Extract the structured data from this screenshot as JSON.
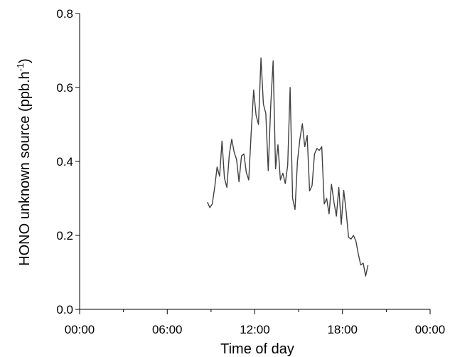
{
  "chart_data": {
    "type": "line",
    "xlabel": "Time of day",
    "ylabel_main": "HONO unknown source (ppb.h",
    "ylabel_sup": "-1",
    "ylabel_close": ")",
    "ylim": [
      0,
      0.8
    ],
    "yticks": [
      0.0,
      0.2,
      0.4,
      0.6,
      0.8
    ],
    "ytick_labels": [
      "0.0",
      "0.2",
      "0.4",
      "0.6",
      "0.8"
    ],
    "xlim_hours": [
      0,
      24
    ],
    "xticks_hours": [
      0,
      6,
      12,
      18,
      24
    ],
    "xtick_labels": [
      "00:00",
      "06:00",
      "12:00",
      "18:00",
      "00:00"
    ],
    "xminor_hours": [
      3,
      9,
      15,
      21
    ],
    "grid": false,
    "line_color": "#404040",
    "series": [
      {
        "x": [
          "08:45",
          "08:55",
          "09:05",
          "09:15",
          "09:25",
          "09:35",
          "09:45",
          "09:55",
          "10:05",
          "10:15",
          "10:25",
          "10:35",
          "10:45",
          "10:55",
          "11:05",
          "11:15",
          "11:25",
          "11:35",
          "11:45",
          "11:55",
          "12:05",
          "12:15",
          "12:25",
          "12:35",
          "12:45",
          "12:55",
          "13:05",
          "13:15",
          "13:25",
          "13:35",
          "13:45",
          "13:55",
          "14:05",
          "14:15",
          "14:25",
          "14:35",
          "14:45",
          "14:55",
          "15:05",
          "15:15",
          "15:25",
          "15:35",
          "15:45",
          "15:55",
          "16:05",
          "16:15",
          "16:25",
          "16:35",
          "16:45",
          "16:55",
          "17:05",
          "17:15",
          "17:25",
          "17:35",
          "17:45",
          "17:55",
          "18:05",
          "18:15",
          "18:25",
          "18:35",
          "18:45",
          "18:55",
          "19:05",
          "19:15",
          "19:25",
          "19:35",
          "19:45"
        ],
        "y": [
          0.29,
          0.275,
          0.285,
          0.33,
          0.385,
          0.36,
          0.455,
          0.355,
          0.33,
          0.42,
          0.46,
          0.425,
          0.405,
          0.345,
          0.415,
          0.42,
          0.37,
          0.35,
          0.48,
          0.593,
          0.525,
          0.5,
          0.68,
          0.555,
          0.53,
          0.375,
          0.55,
          0.672,
          0.38,
          0.445,
          0.35,
          0.368,
          0.34,
          0.39,
          0.6,
          0.3,
          0.27,
          0.4,
          0.46,
          0.502,
          0.44,
          0.47,
          0.32,
          0.335,
          0.42,
          0.435,
          0.43,
          0.44,
          0.285,
          0.3,
          0.258,
          0.338,
          0.29,
          0.252,
          0.33,
          0.23,
          0.322,
          0.265,
          0.195,
          0.19,
          0.2,
          0.185,
          0.15,
          0.12,
          0.125,
          0.09,
          0.12
        ]
      }
    ]
  }
}
